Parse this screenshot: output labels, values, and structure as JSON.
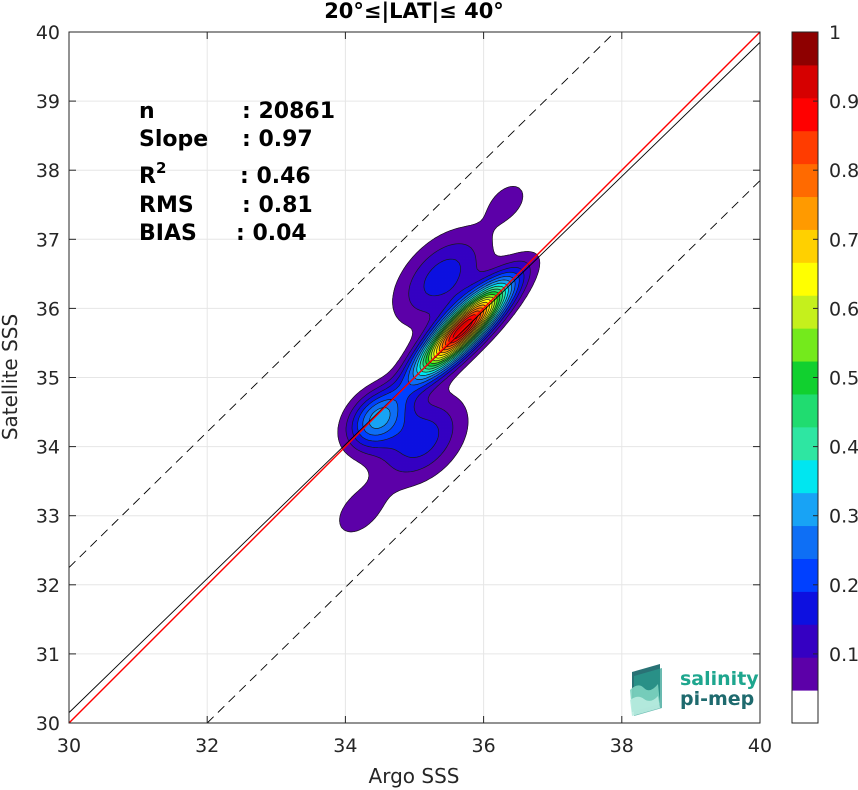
{
  "chart_data": {
    "type": "contour",
    "title": "20°≤|LAT|≤ 40°",
    "xlabel": "Argo SSS",
    "ylabel": "Satellite SSS",
    "xlim": [
      30,
      40
    ],
    "ylim": [
      30,
      40
    ],
    "xticks": [
      "30",
      "32",
      "34",
      "36",
      "38",
      "40"
    ],
    "yticks": [
      "30",
      "31",
      "32",
      "33",
      "34",
      "35",
      "36",
      "37",
      "38",
      "39",
      "40"
    ],
    "grid": true,
    "stats": [
      {
        "label": "n",
        "value": ": 20861"
      },
      {
        "label": "Slope",
        "value": ": 0.97"
      },
      {
        "label": "R",
        "sup": "2",
        "value": ": 0.46"
      },
      {
        "label": "RMS",
        "value": ": 0.81"
      },
      {
        "label": "BIAS",
        "value": ": 0.04"
      }
    ],
    "lines": [
      {
        "kind": "one-to-one",
        "color": "#000000",
        "style": "solid",
        "points": [
          [
            30,
            30.15
          ],
          [
            40,
            39.85
          ]
        ]
      },
      {
        "kind": "regression",
        "color": "#ff0000",
        "style": "solid",
        "points": [
          [
            30,
            30
          ],
          [
            40,
            40
          ]
        ]
      },
      {
        "kind": "upper-2-sigma",
        "color": "#000000",
        "style": "dashed",
        "points": [
          [
            30,
            32.25
          ],
          [
            37.9,
            40
          ]
        ]
      },
      {
        "kind": "lower-2-sigma",
        "color": "#000000",
        "style": "dashed",
        "points": [
          [
            32,
            30
          ],
          [
            40,
            37.85
          ]
        ]
      }
    ],
    "density_field": {
      "description": "normalized kernel density of satellite vs argo SSS",
      "components": [
        {
          "cx": 35.7,
          "cy": 35.7,
          "su": 0.62,
          "sv": 0.17,
          "w": 1.0
        },
        {
          "cx": 34.45,
          "cy": 34.4,
          "su": 0.34,
          "sv": 0.24,
          "w": 0.3
        },
        {
          "cx": 35.1,
          "cy": 34.1,
          "su": 0.5,
          "sv": 0.33,
          "w": 0.18
        },
        {
          "cx": 35.4,
          "cy": 36.45,
          "su": 0.55,
          "sv": 0.32,
          "w": 0.18
        },
        {
          "cx": 34.2,
          "cy": 33.05,
          "su": 0.35,
          "sv": 0.22,
          "w": 0.08
        },
        {
          "cx": 36.35,
          "cy": 37.55,
          "su": 0.3,
          "sv": 0.2,
          "w": 0.07
        }
      ],
      "levels": [
        0.05,
        0.1,
        0.15,
        0.2,
        0.25,
        0.3,
        0.35,
        0.4,
        0.45,
        0.5,
        0.55,
        0.6,
        0.65,
        0.7,
        0.75,
        0.8,
        0.85,
        0.9,
        0.95
      ]
    },
    "colorbar": {
      "range": [
        0,
        1
      ],
      "tick_labels": [
        "0.1",
        "0.2",
        "0.3",
        "0.4",
        "0.5",
        "0.6",
        "0.7",
        "0.8",
        "0.9",
        "1"
      ],
      "tick_values": [
        0.1,
        0.2,
        0.3,
        0.4,
        0.5,
        0.6,
        0.7,
        0.8,
        0.9,
        1.0
      ],
      "colors": [
        "#ffffff",
        "#5c00a8",
        "#3500c2",
        "#0d10e0",
        "#0040ff",
        "#0e6ff5",
        "#18a3f5",
        "#00e6f0",
        "#2ee6a2",
        "#20dc70",
        "#11d02f",
        "#74ea1c",
        "#c5f01c",
        "#ffff00",
        "#ffd000",
        "#ff9a00",
        "#ff6a00",
        "#ff3c00",
        "#ff0000",
        "#d60000",
        "#8e0000"
      ]
    }
  },
  "logo": {
    "line1": "salinity",
    "line2": "pi-mep",
    "color1": "#1ea68e",
    "color2": "#1e6a6e"
  }
}
